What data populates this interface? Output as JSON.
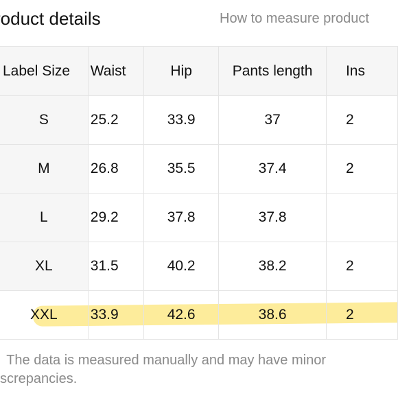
{
  "header": {
    "title": "roduct details",
    "howto_link": "How to measure product"
  },
  "table": {
    "columns": [
      "Label Size",
      "Waist",
      "Hip",
      "Pants length",
      "Ins"
    ],
    "rows": [
      [
        "S",
        "25.2",
        "33.9",
        "37",
        "2"
      ],
      [
        "M",
        "26.8",
        "35.5",
        "37.4",
        "2"
      ],
      [
        "L",
        "29.2",
        "37.8",
        "37.8",
        ""
      ],
      [
        "XL",
        "31.5",
        "40.2",
        "38.2",
        "2"
      ],
      [
        "XXL",
        "33.9",
        "42.6",
        "38.6",
        "2"
      ]
    ],
    "highlighted_row": "XXL",
    "highlight_color": "#fde98a"
  },
  "footer": {
    "note_line1": "The data is measured manually and may have minor",
    "note_line2": "screpancies."
  }
}
